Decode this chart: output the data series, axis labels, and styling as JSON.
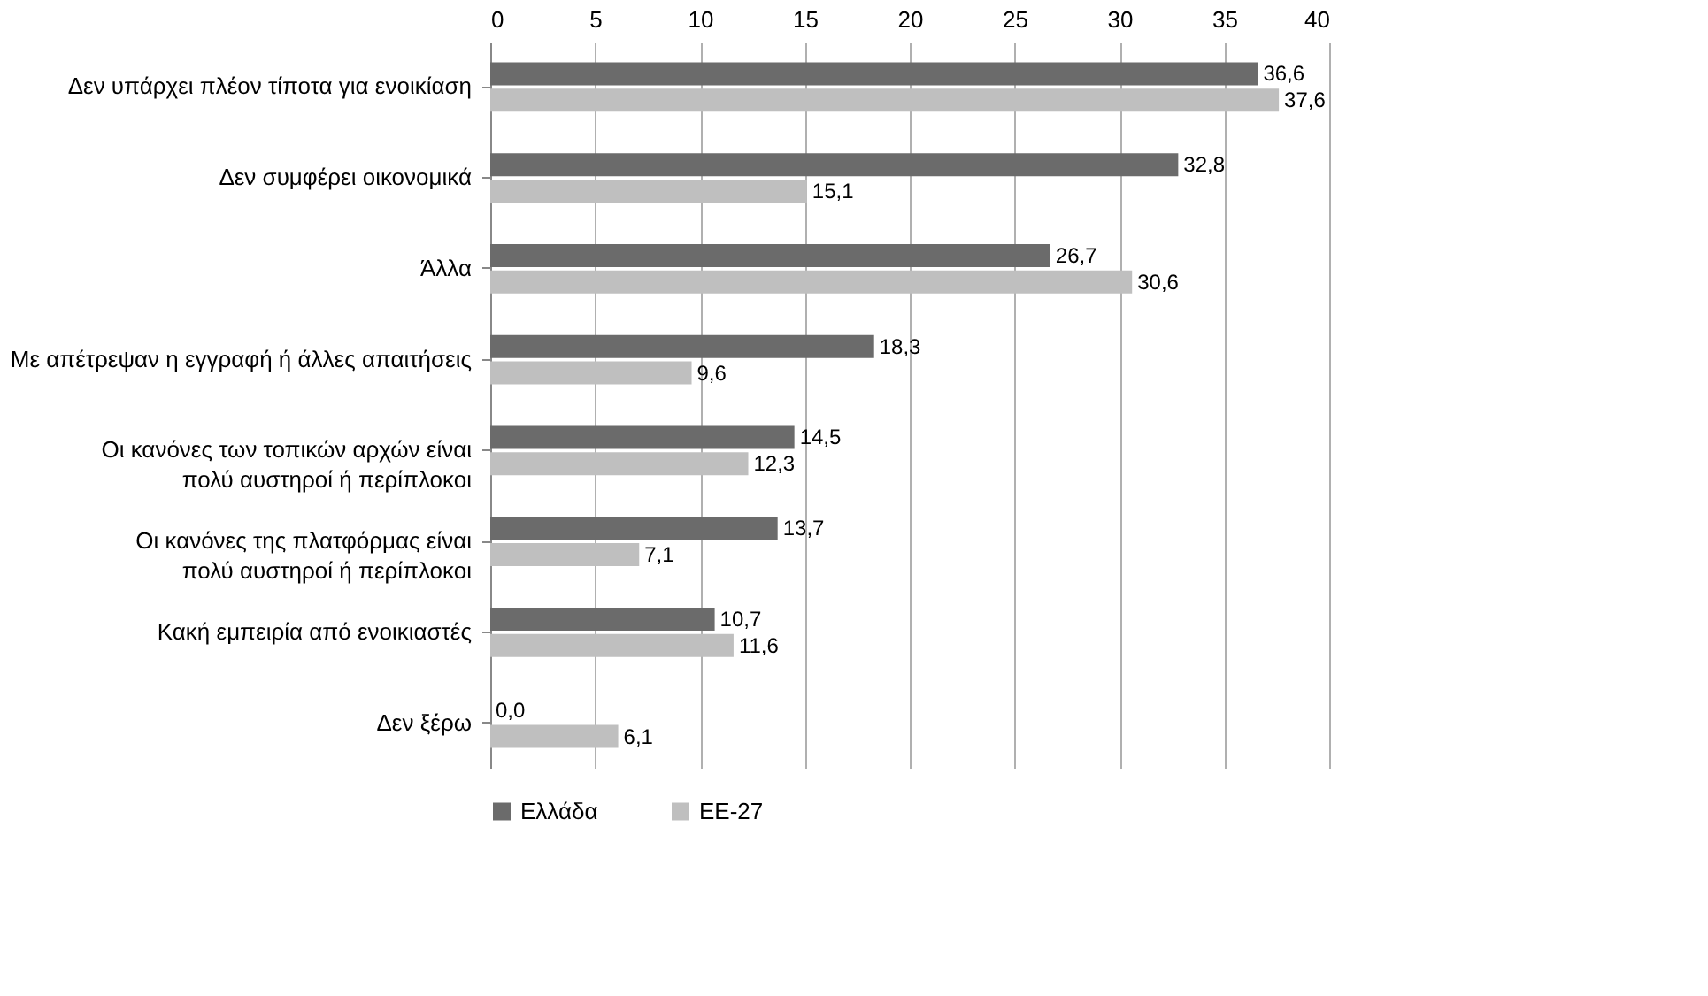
{
  "chart_data": {
    "type": "bar",
    "orientation": "horizontal",
    "categories": [
      "Δεν υπάρχει πλέον τίποτα για ενοικίαση",
      "Δεν συμφέρει οικονομικά",
      "Άλλα",
      "Με απέτρεψαν η εγγραφή ή άλλες απαιτήσεις",
      "Οι κανόνες των τοπικών αρχών είναι\nπολύ αυστηροί ή περίπλοκοι",
      "Οι κανόνες της πλατφόρμας είναι\nπολύ αυστηροί ή περίπλοκοι",
      "Κακή εμπειρία από ενοικιαστές",
      "Δεν ξέρω"
    ],
    "series": [
      {
        "name": "Ελλάδα",
        "color": "#6b6b6b",
        "values": [
          36.6,
          32.8,
          26.7,
          18.3,
          14.5,
          13.7,
          10.7,
          0.0
        ],
        "value_labels": [
          "36,6",
          "32,8",
          "26,7",
          "18,3",
          "14,5",
          "13,7",
          "10,7",
          "0,0"
        ]
      },
      {
        "name": "ΕΕ-27",
        "color": "#bfbfbf",
        "values": [
          37.6,
          15.1,
          30.6,
          9.6,
          12.3,
          7.1,
          11.6,
          6.1
        ],
        "value_labels": [
          "37,6",
          "15,1",
          "30,6",
          "9,6",
          "12,3",
          "7,1",
          "11,6",
          "6,1"
        ]
      }
    ],
    "xlim": [
      0,
      40
    ],
    "xticks": [
      0,
      5,
      10,
      15,
      20,
      25,
      30,
      35,
      40
    ],
    "grid": "x",
    "legend": "bottom"
  }
}
